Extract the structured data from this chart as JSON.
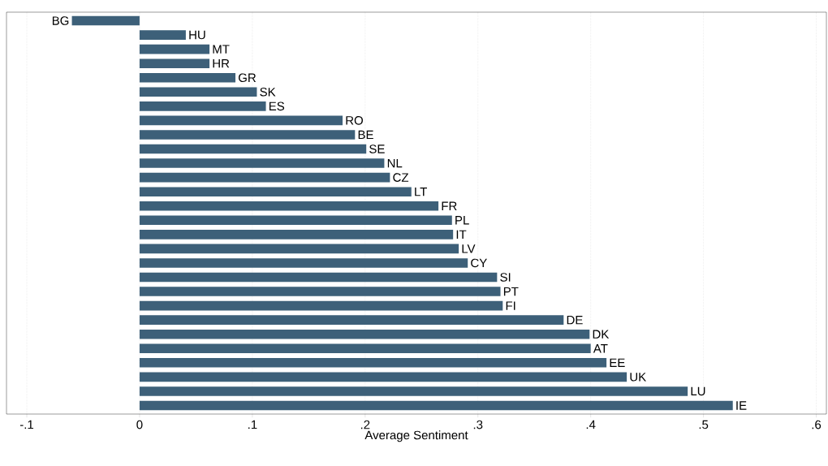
{
  "chart_data": {
    "type": "bar",
    "orientation": "horizontal",
    "xlabel": "Average Sentiment",
    "categories": [
      "BG",
      "HU",
      "MT",
      "HR",
      "GR",
      "SK",
      "ES",
      "RO",
      "BE",
      "SE",
      "NL",
      "CZ",
      "LT",
      "FR",
      "PL",
      "IT",
      "LV",
      "CY",
      "SI",
      "PT",
      "FI",
      "DE",
      "DK",
      "AT",
      "EE",
      "UK",
      "LU",
      "IE"
    ],
    "values": [
      -0.06,
      0.041,
      0.062,
      0.062,
      0.085,
      0.104,
      0.112,
      0.18,
      0.191,
      0.201,
      0.217,
      0.222,
      0.241,
      0.265,
      0.277,
      0.278,
      0.283,
      0.291,
      0.317,
      0.32,
      0.322,
      0.376,
      0.399,
      0.4,
      0.414,
      0.432,
      0.486,
      0.526
    ],
    "color": "#3d6079",
    "xlim": [
      -0.118,
      0.609
    ],
    "xticks": [
      {
        "value": -0.1,
        "label": "-.1"
      },
      0,
      {
        "value": 0.1,
        "label": ".1"
      },
      {
        "value": 0.2,
        "label": ".2"
      },
      {
        "value": 0.3,
        "label": ".3"
      },
      {
        "value": 0.4,
        "label": ".4"
      },
      {
        "value": 0.5,
        "label": ".5"
      },
      {
        "value": 0.6,
        "label": ".6"
      }
    ],
    "grid": "x",
    "tick_labels": "x"
  }
}
